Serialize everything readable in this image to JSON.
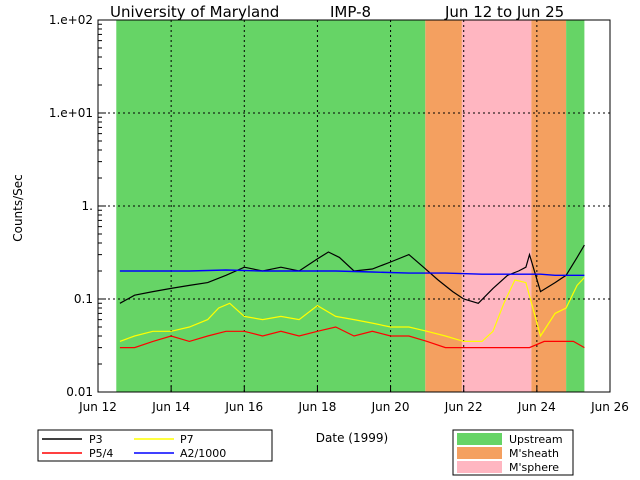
{
  "chart_data": {
    "type": "line",
    "title_left": "University of Maryland",
    "title_mid": "IMP-8",
    "title_right": "Jun 12 to Jun 25",
    "xlabel": "Date (1999)",
    "ylabel": "Counts/Sec",
    "y_scale": "log",
    "ylim": [
      0.01,
      100
    ],
    "xlim": [
      12,
      26
    ],
    "x_ticks": [
      12,
      14,
      16,
      18,
      20,
      22,
      24,
      26
    ],
    "x_tick_labels": [
      "Jun 12",
      "Jun 14",
      "Jun 16",
      "Jun 18",
      "Jun 20",
      "Jun 22",
      "Jun 24",
      "Jun 26"
    ],
    "y_ticks": [
      0.01,
      0.1,
      1,
      10,
      100
    ],
    "y_tick_labels": [
      "0.01",
      "0.1",
      "1.",
      "1.e+01",
      "1.e+02"
    ],
    "grid": true,
    "regions": [
      {
        "type": "Upstream",
        "start": 12.5,
        "end": 20.95
      },
      {
        "type": "M'sheath",
        "start": 20.95,
        "end": 21.95
      },
      {
        "type": "M'sphere",
        "start": 21.95,
        "end": 23.85
      },
      {
        "type": "M'sheath",
        "start": 23.85,
        "end": 24.8
      },
      {
        "type": "Upstream",
        "start": 24.8,
        "end": 25.3
      }
    ],
    "region_colors": {
      "Upstream": "#66d466",
      "M'sheath": "#f4a060",
      "M'sphere": "#ffb6c1"
    },
    "series": [
      {
        "name": "P3",
        "color": "#000000",
        "x": [
          12.6,
          13.0,
          13.5,
          14.0,
          14.5,
          15.0,
          15.5,
          16.0,
          16.5,
          17.0,
          17.5,
          18.0,
          18.3,
          18.6,
          19.0,
          19.5,
          20.0,
          20.5,
          20.9,
          21.3,
          21.7,
          22.0,
          22.4,
          22.8,
          23.2,
          23.5,
          23.7,
          23.8,
          24.1,
          24.5,
          24.8,
          25.1,
          25.3
        ],
        "y": [
          0.09,
          0.11,
          0.12,
          0.13,
          0.14,
          0.15,
          0.18,
          0.22,
          0.2,
          0.22,
          0.2,
          0.27,
          0.32,
          0.28,
          0.2,
          0.21,
          0.25,
          0.3,
          0.22,
          0.16,
          0.12,
          0.1,
          0.09,
          0.13,
          0.18,
          0.2,
          0.22,
          0.3,
          0.12,
          0.15,
          0.18,
          0.28,
          0.38
        ]
      },
      {
        "name": "P5/4",
        "color": "#ff0000",
        "x": [
          12.6,
          13.0,
          13.5,
          14.0,
          14.5,
          15.0,
          15.5,
          16.0,
          16.5,
          17.0,
          17.5,
          18.0,
          18.5,
          19.0,
          19.5,
          20.0,
          20.5,
          21.0,
          21.5,
          22.0,
          22.5,
          23.0,
          23.5,
          23.8,
          24.2,
          24.6,
          25.0,
          25.3
        ],
        "y": [
          0.03,
          0.03,
          0.035,
          0.04,
          0.035,
          0.04,
          0.045,
          0.045,
          0.04,
          0.045,
          0.04,
          0.045,
          0.05,
          0.04,
          0.045,
          0.04,
          0.04,
          0.035,
          0.03,
          0.03,
          0.03,
          0.03,
          0.03,
          0.03,
          0.035,
          0.035,
          0.035,
          0.03
        ]
      },
      {
        "name": "P7",
        "color": "#ffff00",
        "x": [
          12.6,
          13.0,
          13.5,
          14.0,
          14.5,
          15.0,
          15.3,
          15.6,
          16.0,
          16.5,
          17.0,
          17.5,
          18.0,
          18.5,
          19.0,
          19.5,
          20.0,
          20.5,
          21.0,
          21.5,
          22.0,
          22.5,
          22.8,
          23.1,
          23.4,
          23.7,
          24.1,
          24.5,
          24.8,
          25.1,
          25.3
        ],
        "y": [
          0.035,
          0.04,
          0.045,
          0.045,
          0.05,
          0.06,
          0.08,
          0.09,
          0.065,
          0.06,
          0.065,
          0.06,
          0.085,
          0.065,
          0.06,
          0.055,
          0.05,
          0.05,
          0.045,
          0.04,
          0.035,
          0.035,
          0.045,
          0.09,
          0.16,
          0.15,
          0.04,
          0.07,
          0.08,
          0.14,
          0.17
        ]
      },
      {
        "name": "A2/1000",
        "color": "#0000ff",
        "x": [
          12.6,
          13.5,
          14.5,
          15.5,
          16.5,
          17.5,
          18.5,
          19.5,
          20.5,
          21.5,
          22.5,
          23.5,
          23.8,
          24.1,
          24.5,
          25.0,
          25.3
        ],
        "y": [
          0.2,
          0.2,
          0.2,
          0.205,
          0.2,
          0.2,
          0.2,
          0.195,
          0.19,
          0.19,
          0.185,
          0.185,
          0.185,
          0.185,
          0.18,
          0.18,
          0.18
        ]
      }
    ],
    "legend_lines": [
      "P3",
      "P7",
      "P5/4",
      "A2/1000"
    ],
    "legend_regions": [
      "Upstream",
      "M'sheath",
      "M'sphere"
    ]
  }
}
